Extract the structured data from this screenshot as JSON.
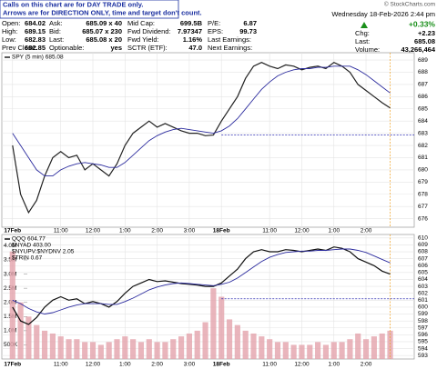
{
  "notice": [
    "Calls on this chart are for DAY TRADE only.",
    "Arrows are for DIRECTION ONLY, time and target don't count."
  ],
  "quote": {
    "columns": [
      [
        [
          "Open:",
          "684.02"
        ],
        [
          "High:",
          "689.15"
        ],
        [
          "Low:",
          "682.83"
        ],
        [
          "Prev Close:",
          "682.85"
        ]
      ],
      [
        [
          "Ask:",
          "685.09 x 40"
        ],
        [
          "Bid:",
          "685.07 x 230"
        ],
        [
          "Last:",
          "685.08 x 20"
        ],
        [
          "Optionable:",
          "yes"
        ]
      ],
      [
        [
          "Mid Cap:",
          "699.5B"
        ],
        [
          "Fwd Dividend:",
          "7.97347"
        ],
        [
          "Fwd Yield:",
          "1.16%"
        ],
        [
          "SCTR (ETF):",
          "47.0"
        ]
      ],
      [
        [
          "P/E:",
          "6.87"
        ],
        [
          "EPS:",
          "99.73"
        ],
        [
          "Last Earnings:",
          ""
        ],
        [
          "Next Earnings:",
          ""
        ]
      ]
    ],
    "source": "© StockCharts.com",
    "datetime": "Wednesday 18-Feb-2026 2:44 pm",
    "change_pct": "+0.33%",
    "info": [
      [
        "Chg:",
        "+2.23"
      ],
      [
        "Last:",
        "685.08"
      ],
      [
        "Volume:",
        "43,266,464"
      ]
    ]
  },
  "chart_data": [
    {
      "type": "line",
      "x": [
        0,
        3,
        6,
        9,
        12,
        15,
        18,
        21,
        24,
        27,
        30,
        33,
        36,
        39,
        42,
        45,
        48,
        51,
        54,
        57,
        60,
        63,
        66,
        69,
        72,
        75,
        78,
        81,
        84,
        87,
        90,
        93,
        96,
        99,
        102,
        105,
        108,
        111,
        114,
        117,
        120,
        123,
        126,
        129,
        132,
        135,
        138,
        141
      ],
      "series": [
        {
          "name": "SPY (5 min) 685.08",
          "color": "#222222",
          "values": [
            682,
            678,
            676.5,
            677.5,
            679.5,
            681,
            681.5,
            681,
            681.2,
            680,
            680.5,
            680,
            679.5,
            680.5,
            682,
            683,
            683.5,
            684,
            683.5,
            683.8,
            683.5,
            683.2,
            683,
            683,
            682.8,
            682.85,
            684,
            685,
            686,
            687.5,
            688.5,
            688.8,
            688.5,
            688.3,
            688.6,
            688.5,
            688.2,
            688.4,
            688.5,
            688.3,
            688.8,
            688.5,
            688,
            687,
            686.5,
            686,
            685.5,
            685.08
          ]
        },
        {
          "color": "#2b2b9e",
          "values": [
            683,
            682,
            681,
            680,
            679.5,
            679.5,
            680,
            680.3,
            680.5,
            680.6,
            680.5,
            680.4,
            680.2,
            680.2,
            680.6,
            681.2,
            681.8,
            682.4,
            682.8,
            683.1,
            683.3,
            683.4,
            683.3,
            683.2,
            683.1,
            683,
            683.2,
            683.6,
            684.2,
            685,
            685.8,
            686.6,
            687.2,
            687.7,
            688,
            688.2,
            688.3,
            688.3,
            688.4,
            688.4,
            688.5,
            688.5,
            688.5,
            688.2,
            687.8,
            687.3,
            686.8,
            686.3
          ]
        }
      ],
      "hline": 682.85,
      "xlim": [
        -4,
        150
      ],
      "xticks": [
        {
          "value": 0,
          "label": "17Feb"
        },
        {
          "value": 18,
          "label": "11:00"
        },
        {
          "value": 30,
          "label": "12:00"
        },
        {
          "value": 42,
          "label": "1:00"
        },
        {
          "value": 54,
          "label": "2:00"
        },
        {
          "value": 66,
          "label": "3:00"
        },
        {
          "value": 78,
          "label": "18Feb"
        },
        {
          "value": 96,
          "label": "11:00"
        },
        {
          "value": 108,
          "label": "12:00"
        },
        {
          "value": 120,
          "label": "1:00"
        },
        {
          "value": 132,
          "label": "2:00"
        }
      ],
      "ylim": [
        675.3,
        689.6
      ],
      "yticks": [
        676,
        677,
        678,
        679,
        680,
        681,
        682,
        683,
        684,
        685,
        686,
        687,
        688,
        689
      ],
      "grid": true
    },
    {
      "type": "line",
      "x": [
        0,
        3,
        6,
        9,
        12,
        15,
        18,
        21,
        24,
        27,
        30,
        33,
        36,
        39,
        42,
        45,
        48,
        51,
        54,
        57,
        60,
        63,
        66,
        69,
        72,
        75,
        78,
        81,
        84,
        87,
        90,
        93,
        96,
        99,
        102,
        105,
        108,
        111,
        114,
        117,
        120,
        123,
        126,
        129,
        132,
        135,
        138,
        141
      ],
      "series": [
        {
          "name": "QQQ 604.77",
          "color": "#111111",
          "values": [
            600,
            598,
            597.5,
            598.5,
            600,
            601,
            601.5,
            601,
            601.2,
            600.5,
            600.8,
            600.5,
            600,
            600.8,
            602,
            603,
            603.5,
            604,
            603.7,
            603.8,
            603.6,
            603.4,
            603.3,
            603.2,
            603,
            603,
            603.5,
            604.5,
            605.5,
            607,
            608,
            608.3,
            608,
            608,
            608.3,
            608.2,
            608,
            608.2,
            608.4,
            608.2,
            608.7,
            608.5,
            608,
            607,
            606.5,
            606,
            605.2,
            604.77
          ]
        },
        {
          "color": "#2b2b9e",
          "values": [
            601,
            600.5,
            599.8,
            599.3,
            599,
            599.2,
            599.6,
            600,
            600.3,
            600.5,
            600.5,
            600.5,
            600.4,
            600.4,
            600.8,
            601.3,
            601.9,
            602.5,
            602.9,
            603.2,
            603.4,
            603.5,
            603.4,
            603.3,
            603.2,
            603.1,
            603.3,
            603.6,
            604.2,
            605,
            605.8,
            606.6,
            607.2,
            607.6,
            607.9,
            608,
            608.1,
            608.1,
            608.2,
            608.2,
            608.3,
            608.4,
            608.4,
            608.2,
            607.9,
            607.4,
            606.9,
            606.4
          ]
        }
      ],
      "indicators": [
        "$NYAD 403.00",
        "$NYUPV:$NYDNV 2.05",
        "$TRIN 0.67"
      ],
      "volume": {
        "color": "#e3a3ab",
        "values": [
          3800000,
          2000000,
          1500000,
          1200000,
          1000000,
          900000,
          800000,
          700000,
          700000,
          600000,
          600000,
          500000,
          600000,
          700000,
          800000,
          700000,
          600000,
          700000,
          600000,
          600000,
          700000,
          800000,
          900000,
          1000000,
          1300000,
          2500000,
          2200000,
          1400000,
          1200000,
          1000000,
          900000,
          800000,
          700000,
          600000,
          600000,
          500000,
          500000,
          500000,
          600000,
          500000,
          600000,
          600000,
          700000,
          900000,
          700000,
          800000,
          900000,
          1000000
        ]
      },
      "hline": 601.2,
      "xlim": [
        -4,
        150
      ],
      "xticks": [
        {
          "value": 0,
          "label": "17Feb"
        },
        {
          "value": 18,
          "label": "11:00"
        },
        {
          "value": 30,
          "label": "12:00"
        },
        {
          "value": 42,
          "label": "1:00"
        },
        {
          "value": 54,
          "label": "2:00"
        },
        {
          "value": 66,
          "label": "3:00"
        },
        {
          "value": 78,
          "label": "18Feb"
        },
        {
          "value": 96,
          "label": "11:00"
        },
        {
          "value": 108,
          "label": "12:00"
        },
        {
          "value": 120,
          "label": "1:00"
        },
        {
          "value": 132,
          "label": "2:00"
        }
      ],
      "ylim": [
        592.5,
        610.5
      ],
      "yticks": [
        593,
        594,
        595,
        596,
        597,
        598,
        599,
        600,
        601,
        602,
        603,
        604,
        605,
        606,
        607,
        608,
        609,
        610
      ],
      "y2lim": [
        0,
        4400000
      ],
      "y2ticks": [
        {
          "value": 500000,
          "label": "500K"
        },
        {
          "value": 1000000,
          "label": "1.0M"
        },
        {
          "value": 1500000,
          "label": "1.5M"
        },
        {
          "value": 2000000,
          "label": "2.0M"
        },
        {
          "value": 2500000,
          "label": "2.5M"
        },
        {
          "value": 3000000,
          "label": "3.0M"
        },
        {
          "value": 3500000,
          "label": "3.5M"
        },
        {
          "value": 4000000,
          "label": "4.0M"
        }
      ],
      "grid": true
    }
  ]
}
